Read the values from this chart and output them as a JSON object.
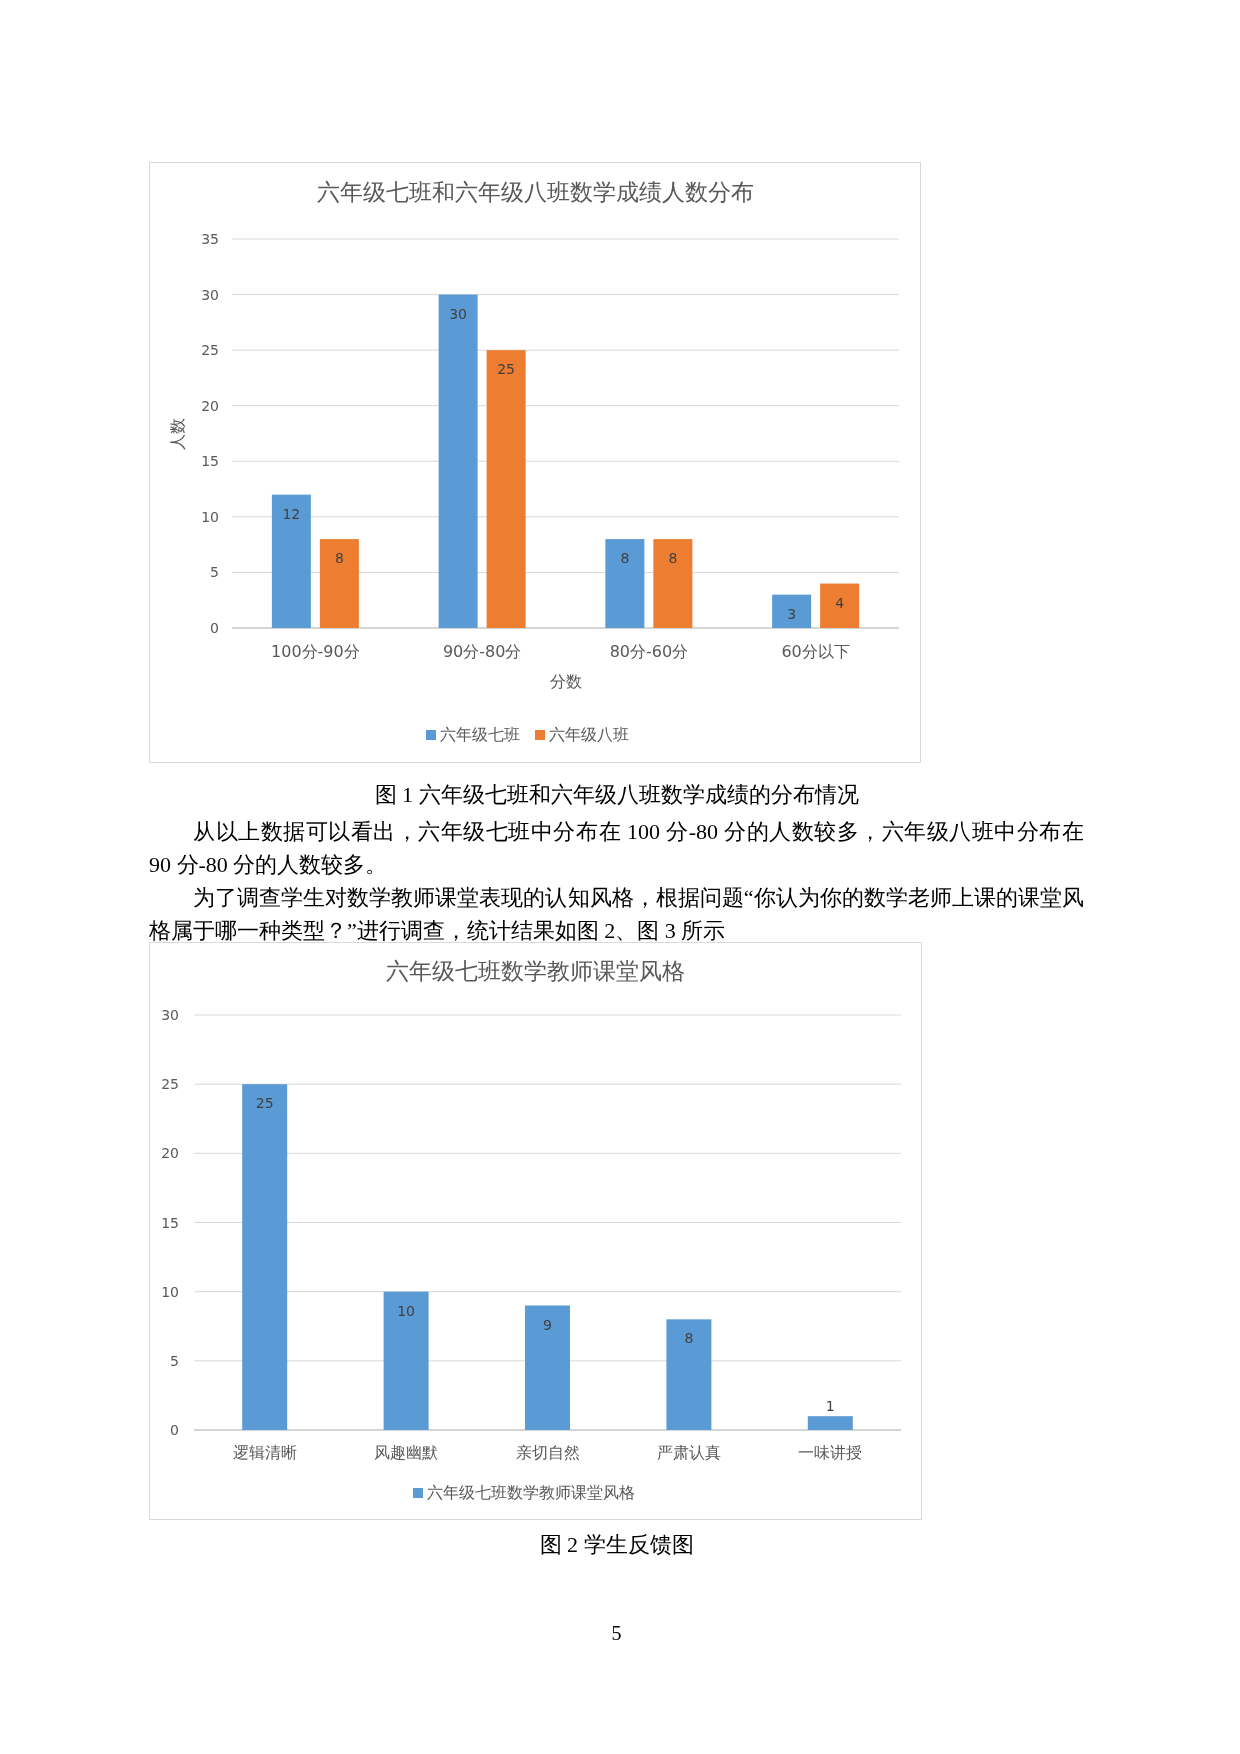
{
  "chart_data": [
    {
      "type": "bar",
      "title": "六年级七班和六年级八班数学成绩人数分布",
      "xlabel": "分数",
      "ylabel": "人数",
      "categories": [
        "100分-90分",
        "90分-80分",
        "80分-60分",
        "60分以下"
      ],
      "series": [
        {
          "name": "六年级七班",
          "color": "#5b9bd5",
          "values": [
            12,
            30,
            8,
            3
          ]
        },
        {
          "name": "六年级八班",
          "color": "#ed7d31",
          "values": [
            8,
            25,
            8,
            4
          ]
        }
      ],
      "ylim": [
        0,
        35
      ],
      "yticks": [
        0,
        5,
        10,
        15,
        20,
        25,
        30,
        35
      ],
      "grid": "y",
      "legend": "bottom",
      "data_labels": true,
      "annotations": [
        "图 1 六年级七班和六年级八班数学成绩的分布情况",
        "从以上数据可以看出，六年级七班中分布在 100 分-80 分的人数较多，六年级八班中分布在 90 分-80 分的人数较多。",
        "为了调查学生对数学教师课堂表现的认知风格，根据问题“你认为你的数学老师上课的课堂风格属于哪一种类型？”进行调查，统计结果如图 2、图 3 所示"
      ]
    },
    {
      "type": "bar",
      "title": "六年级七班数学教师课堂风格",
      "categories": [
        "逻辑清晰",
        "风趣幽默",
        "亲切自然",
        "严肃认真",
        "一味讲授"
      ],
      "series": [
        {
          "name": "六年级七班数学教师课堂风格",
          "color": "#5b9bd5",
          "values": [
            25,
            10,
            9,
            8,
            1
          ]
        }
      ],
      "ylim": [
        0,
        30
      ],
      "yticks": [
        0,
        5,
        10,
        15,
        20,
        25,
        30
      ],
      "grid": "y",
      "legend": "bottom",
      "data_labels": true,
      "annotations": [
        "图 2 学生反馈图",
        "5"
      ]
    }
  ]
}
